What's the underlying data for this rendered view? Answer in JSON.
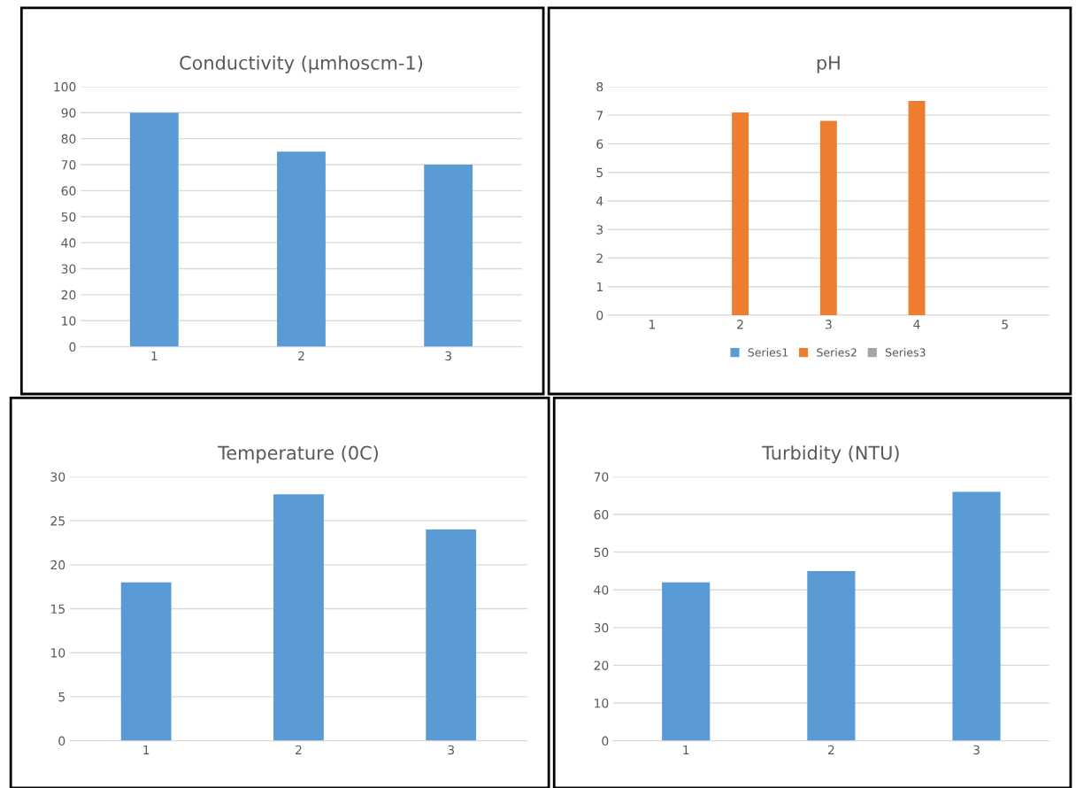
{
  "chart_data": [
    {
      "type": "bar",
      "title": "Conductivity (µmhoscm-1)",
      "categories": [
        "1",
        "2",
        "3"
      ],
      "values": [
        90,
        75,
        70
      ],
      "color": "#5b9bd5",
      "ylim": [
        0,
        100
      ],
      "yticks": [
        0,
        10,
        20,
        30,
        40,
        50,
        60,
        70,
        80,
        90,
        100
      ],
      "grid": "y",
      "legend": false
    },
    {
      "type": "bar",
      "title": "pH",
      "categories": [
        "1",
        "2",
        "3",
        "4",
        "5"
      ],
      "series": [
        {
          "name": "Series1",
          "color": "#5b9bd5",
          "values": [
            null,
            null,
            null,
            null,
            null
          ]
        },
        {
          "name": "Series2",
          "color": "#ed7d31",
          "values": [
            null,
            7.1,
            6.8,
            7.5,
            null
          ]
        },
        {
          "name": "Series3",
          "color": "#a5a5a5",
          "values": [
            null,
            null,
            null,
            null,
            null
          ]
        }
      ],
      "ylim": [
        0,
        8
      ],
      "yticks": [
        0,
        1,
        2,
        3,
        4,
        5,
        6,
        7,
        8
      ],
      "grid": "y",
      "legend": "bottom"
    },
    {
      "type": "bar",
      "title": "Temperature (0C)",
      "categories": [
        "1",
        "2",
        "3"
      ],
      "values": [
        18,
        28,
        24
      ],
      "color": "#5b9bd5",
      "ylim": [
        0,
        30
      ],
      "yticks": [
        0,
        5,
        10,
        15,
        20,
        25,
        30
      ],
      "grid": "y",
      "legend": false
    },
    {
      "type": "bar",
      "title": "Turbidity (NTU)",
      "categories": [
        "1",
        "2",
        "3"
      ],
      "values": [
        42,
        45,
        66
      ],
      "color": "#5b9bd5",
      "ylim": [
        0,
        70
      ],
      "yticks": [
        0,
        10,
        20,
        30,
        40,
        50,
        60,
        70
      ],
      "grid": "y",
      "legend": false
    }
  ]
}
